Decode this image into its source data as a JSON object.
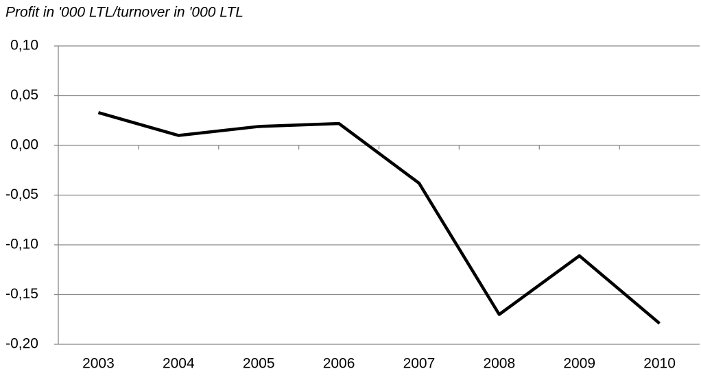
{
  "chart_data": {
    "type": "line",
    "title": "Profit in '000 LTL/turnover in '000  LTL",
    "categories": [
      "2003",
      "2004",
      "2005",
      "2006",
      "2007",
      "2008",
      "2009",
      "2010"
    ],
    "series": [
      {
        "color": "#000000",
        "values": [
          0.033,
          0.01,
          0.019,
          0.022,
          -0.038,
          -0.17,
          -0.111,
          -0.179
        ]
      }
    ],
    "ylim": [
      -0.2,
      0.1
    ],
    "yticks": [
      {
        "value": -0.2,
        "label": "-0,20"
      },
      {
        "value": -0.15,
        "label": "-0,15"
      },
      {
        "value": -0.1,
        "label": "-0,10"
      },
      {
        "value": -0.05,
        "label": "-0,05"
      },
      {
        "value": 0,
        "label": "0,00"
      },
      {
        "value": 0.05,
        "label": "0,05"
      },
      {
        "value": 0.1,
        "label": "0,10"
      }
    ],
    "grid": true
  }
}
